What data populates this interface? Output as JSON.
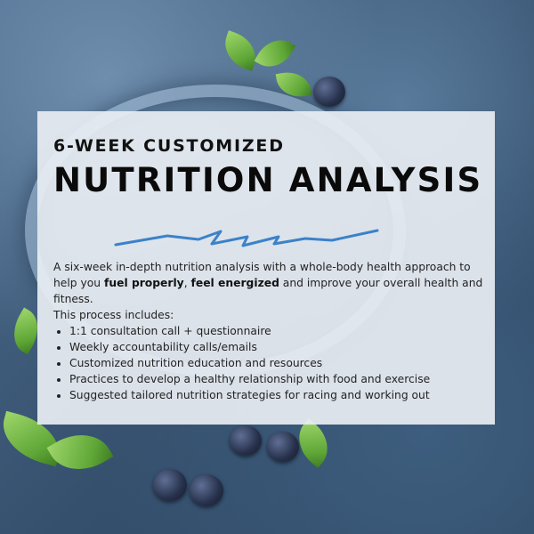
{
  "heading": {
    "subtitle": "6-WEEK CUSTOMIZED",
    "title": "NUTRITION ANALYSIS"
  },
  "description": {
    "part1": "A six-week in-depth nutrition analysis with a whole-body health approach to help you ",
    "bold1": "fuel properly",
    "sep": ", ",
    "bold2": "feel energized",
    "part2": " and improve your overall health and fitness."
  },
  "process_intro": "This process includes:",
  "process_items": [
    "1:1 consultation call + questionnaire",
    "Weekly accountability calls/emails",
    "Customized nutrition education and resources",
    "Practices to develop a healthy relationship with food and exercise",
    "Suggested tailored nutrition strategies for racing and working out"
  ],
  "colors": {
    "accent_wave": "#3b82c9",
    "card_bg": "#e9eef3"
  }
}
